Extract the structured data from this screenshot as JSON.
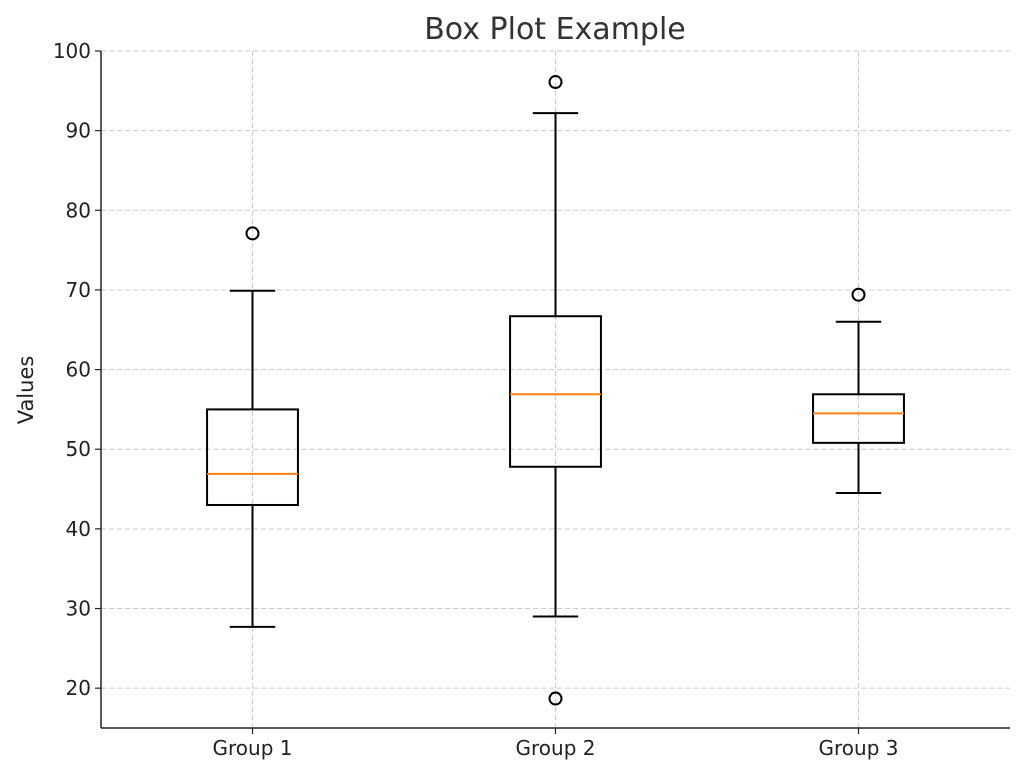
{
  "chart_data": {
    "type": "box",
    "title": "Box Plot Example",
    "xlabel": "",
    "ylabel": "Values",
    "ylim": [
      15,
      100
    ],
    "yticks": [
      20,
      30,
      40,
      50,
      60,
      70,
      80,
      90,
      100
    ],
    "grid": true,
    "categories": [
      "Group 1",
      "Group 2",
      "Group 3"
    ],
    "boxes": [
      {
        "name": "Group 1",
        "whisker_low": 27.7,
        "q1": 43.0,
        "median": 46.9,
        "q3": 55.0,
        "whisker_high": 69.9,
        "outliers": [
          77.1
        ]
      },
      {
        "name": "Group 2",
        "whisker_low": 29.0,
        "q1": 47.8,
        "median": 56.9,
        "q3": 66.7,
        "whisker_high": 92.2,
        "outliers": [
          96.1,
          18.7
        ]
      },
      {
        "name": "Group 3",
        "whisker_low": 44.5,
        "q1": 50.8,
        "median": 54.5,
        "q3": 56.9,
        "whisker_high": 66.0,
        "outliers": [
          69.4
        ]
      }
    ],
    "colors": {
      "box": "#000000",
      "median": "#ff7f0e",
      "grid": "#cccccc"
    }
  }
}
